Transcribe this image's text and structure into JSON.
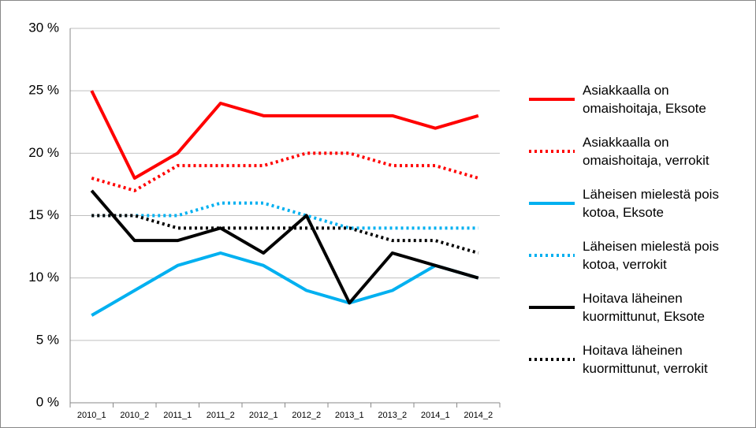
{
  "chart_data": {
    "type": "line",
    "categories": [
      "2010_1",
      "2010_2",
      "2011_1",
      "2011_2",
      "2012_1",
      "2012_2",
      "2013_1",
      "2013_2",
      "2014_1",
      "2014_2"
    ],
    "series": [
      {
        "name": "Asiakkaalla on omaishoitaja, Eksote",
        "color": "#ff0000",
        "line_style": "solid",
        "values": [
          25,
          18,
          20,
          24,
          23,
          23,
          23,
          23,
          22,
          23
        ]
      },
      {
        "name": "Asiakkaalla on omaishoitaja, verrokit",
        "color": "#ff0000",
        "line_style": "dotted",
        "values": [
          18,
          17,
          19,
          19,
          19,
          20,
          20,
          19,
          19,
          18
        ]
      },
      {
        "name": "Läheisen mielestä pois kotoa, Eksote",
        "color": "#00b0f0",
        "line_style": "solid",
        "values": [
          7,
          9,
          11,
          12,
          11,
          9,
          8,
          9,
          11,
          10
        ]
      },
      {
        "name": "Läheisen mielestä pois kotoa, verrokit",
        "color": "#00b0f0",
        "line_style": "dotted",
        "values": [
          15,
          15,
          15,
          16,
          16,
          15,
          14,
          14,
          14,
          14
        ]
      },
      {
        "name": "Hoitava läheinen kuormittunut, Eksote",
        "color": "#000000",
        "line_style": "solid",
        "values": [
          17,
          13,
          13,
          14,
          12,
          15,
          8,
          12,
          11,
          10
        ]
      },
      {
        "name": "Hoitava läheinen kuormittunut, verrokit",
        "color": "#000000",
        "line_style": "dotted",
        "values": [
          15,
          15,
          14,
          14,
          14,
          14,
          14,
          13,
          13,
          12
        ]
      }
    ],
    "ylim": [
      0,
      30
    ],
    "yticks": [
      {
        "value": 0,
        "label": "0 %"
      },
      {
        "value": 5,
        "label": "5 %"
      },
      {
        "value": 10,
        "label": "10 %"
      },
      {
        "value": 15,
        "label": "15 %"
      },
      {
        "value": 20,
        "label": "20 %"
      },
      {
        "value": 25,
        "label": "25 %"
      },
      {
        "value": 30,
        "label": "30 %"
      }
    ],
    "grid": true,
    "legend": "right"
  }
}
